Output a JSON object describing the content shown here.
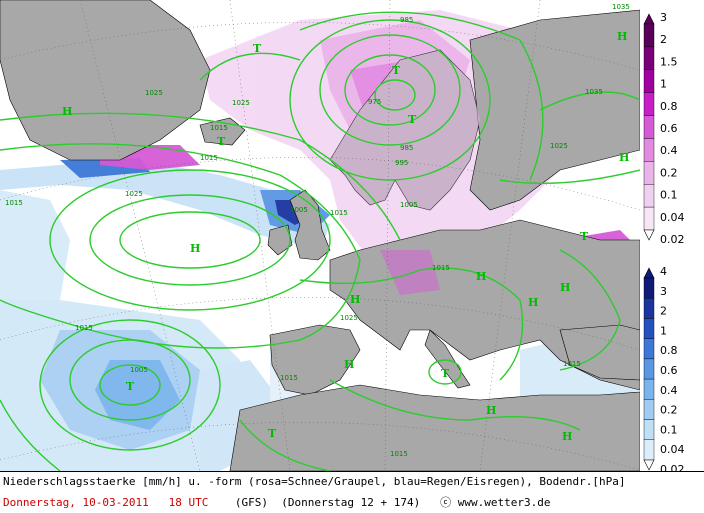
{
  "map": {
    "high_labels": [
      {
        "id": "H1",
        "text": "H"
      },
      {
        "id": "H2",
        "text": "H"
      },
      {
        "id": "H3",
        "text": "H"
      },
      {
        "id": "H4",
        "text": "H"
      },
      {
        "id": "H5",
        "text": "H"
      },
      {
        "id": "H6",
        "text": "H"
      },
      {
        "id": "H7",
        "text": "H"
      },
      {
        "id": "H8",
        "text": "H"
      },
      {
        "id": "H9",
        "text": "H"
      },
      {
        "id": "H10",
        "text": "H"
      },
      {
        "id": "H11",
        "text": "H"
      }
    ],
    "low_labels": [
      {
        "id": "T1",
        "text": "T"
      },
      {
        "id": "T2",
        "text": "T"
      },
      {
        "id": "T3",
        "text": "T"
      },
      {
        "id": "T4",
        "text": "T"
      },
      {
        "id": "T5",
        "text": "T"
      },
      {
        "id": "T6",
        "text": "T"
      },
      {
        "id": "T7",
        "text": "T"
      },
      {
        "id": "T8",
        "text": "T"
      }
    ],
    "isobar_labels": [
      "1025",
      "1025",
      "1015",
      "1015",
      "1025",
      "1015",
      "1015",
      "1005",
      "1015",
      "985",
      "975",
      "985",
      "995",
      "1005",
      "1025",
      "1035",
      "1035",
      "1015",
      "1015",
      "1015",
      "1025",
      "1005",
      "1015"
    ]
  },
  "legend": {
    "snow_scale": {
      "colors": [
        "#f6e6f6",
        "#f0d0f0",
        "#eab4ea",
        "#e28ae2",
        "#d65ad6",
        "#c81ec8",
        "#a000a0",
        "#7a007a",
        "#5a005a"
      ],
      "labels": [
        "3",
        "2",
        "1.5",
        "1",
        "0.8",
        "0.6",
        "0.4",
        "0.2",
        "0.1",
        "0.04",
        "0.02"
      ]
    },
    "rain_scale": {
      "colors": [
        "#dceefa",
        "#bfdff6",
        "#a0ccf2",
        "#7ab4ec",
        "#5a96e2",
        "#3c78d8",
        "#2450c0",
        "#1a34a0",
        "#101a78"
      ],
      "labels": [
        "4",
        "3",
        "2",
        "1",
        "0.8",
        "0.6",
        "0.4",
        "0.2",
        "0.1",
        "0.04",
        "0.02"
      ]
    }
  },
  "footer": {
    "description": "Niederschlagsstaerke [mm/h] u. -form (rosa=Schnee/Graupel, blau=Regen/Eisregen), Bodendr.[hPa]",
    "date": "Donnerstag, 10-03-2011",
    "time": "18 UTC",
    "model": "(GFS)",
    "run": "(Donnerstag 12 + 174)",
    "credit": "ⓒ www.wetter3.de"
  },
  "colors": {
    "land": "#a8a8a8",
    "sea": "#ffffff",
    "isobar": "#2ccc2c",
    "snow_light": "#f3d8f3",
    "rain_light": "#d6eaf8"
  }
}
